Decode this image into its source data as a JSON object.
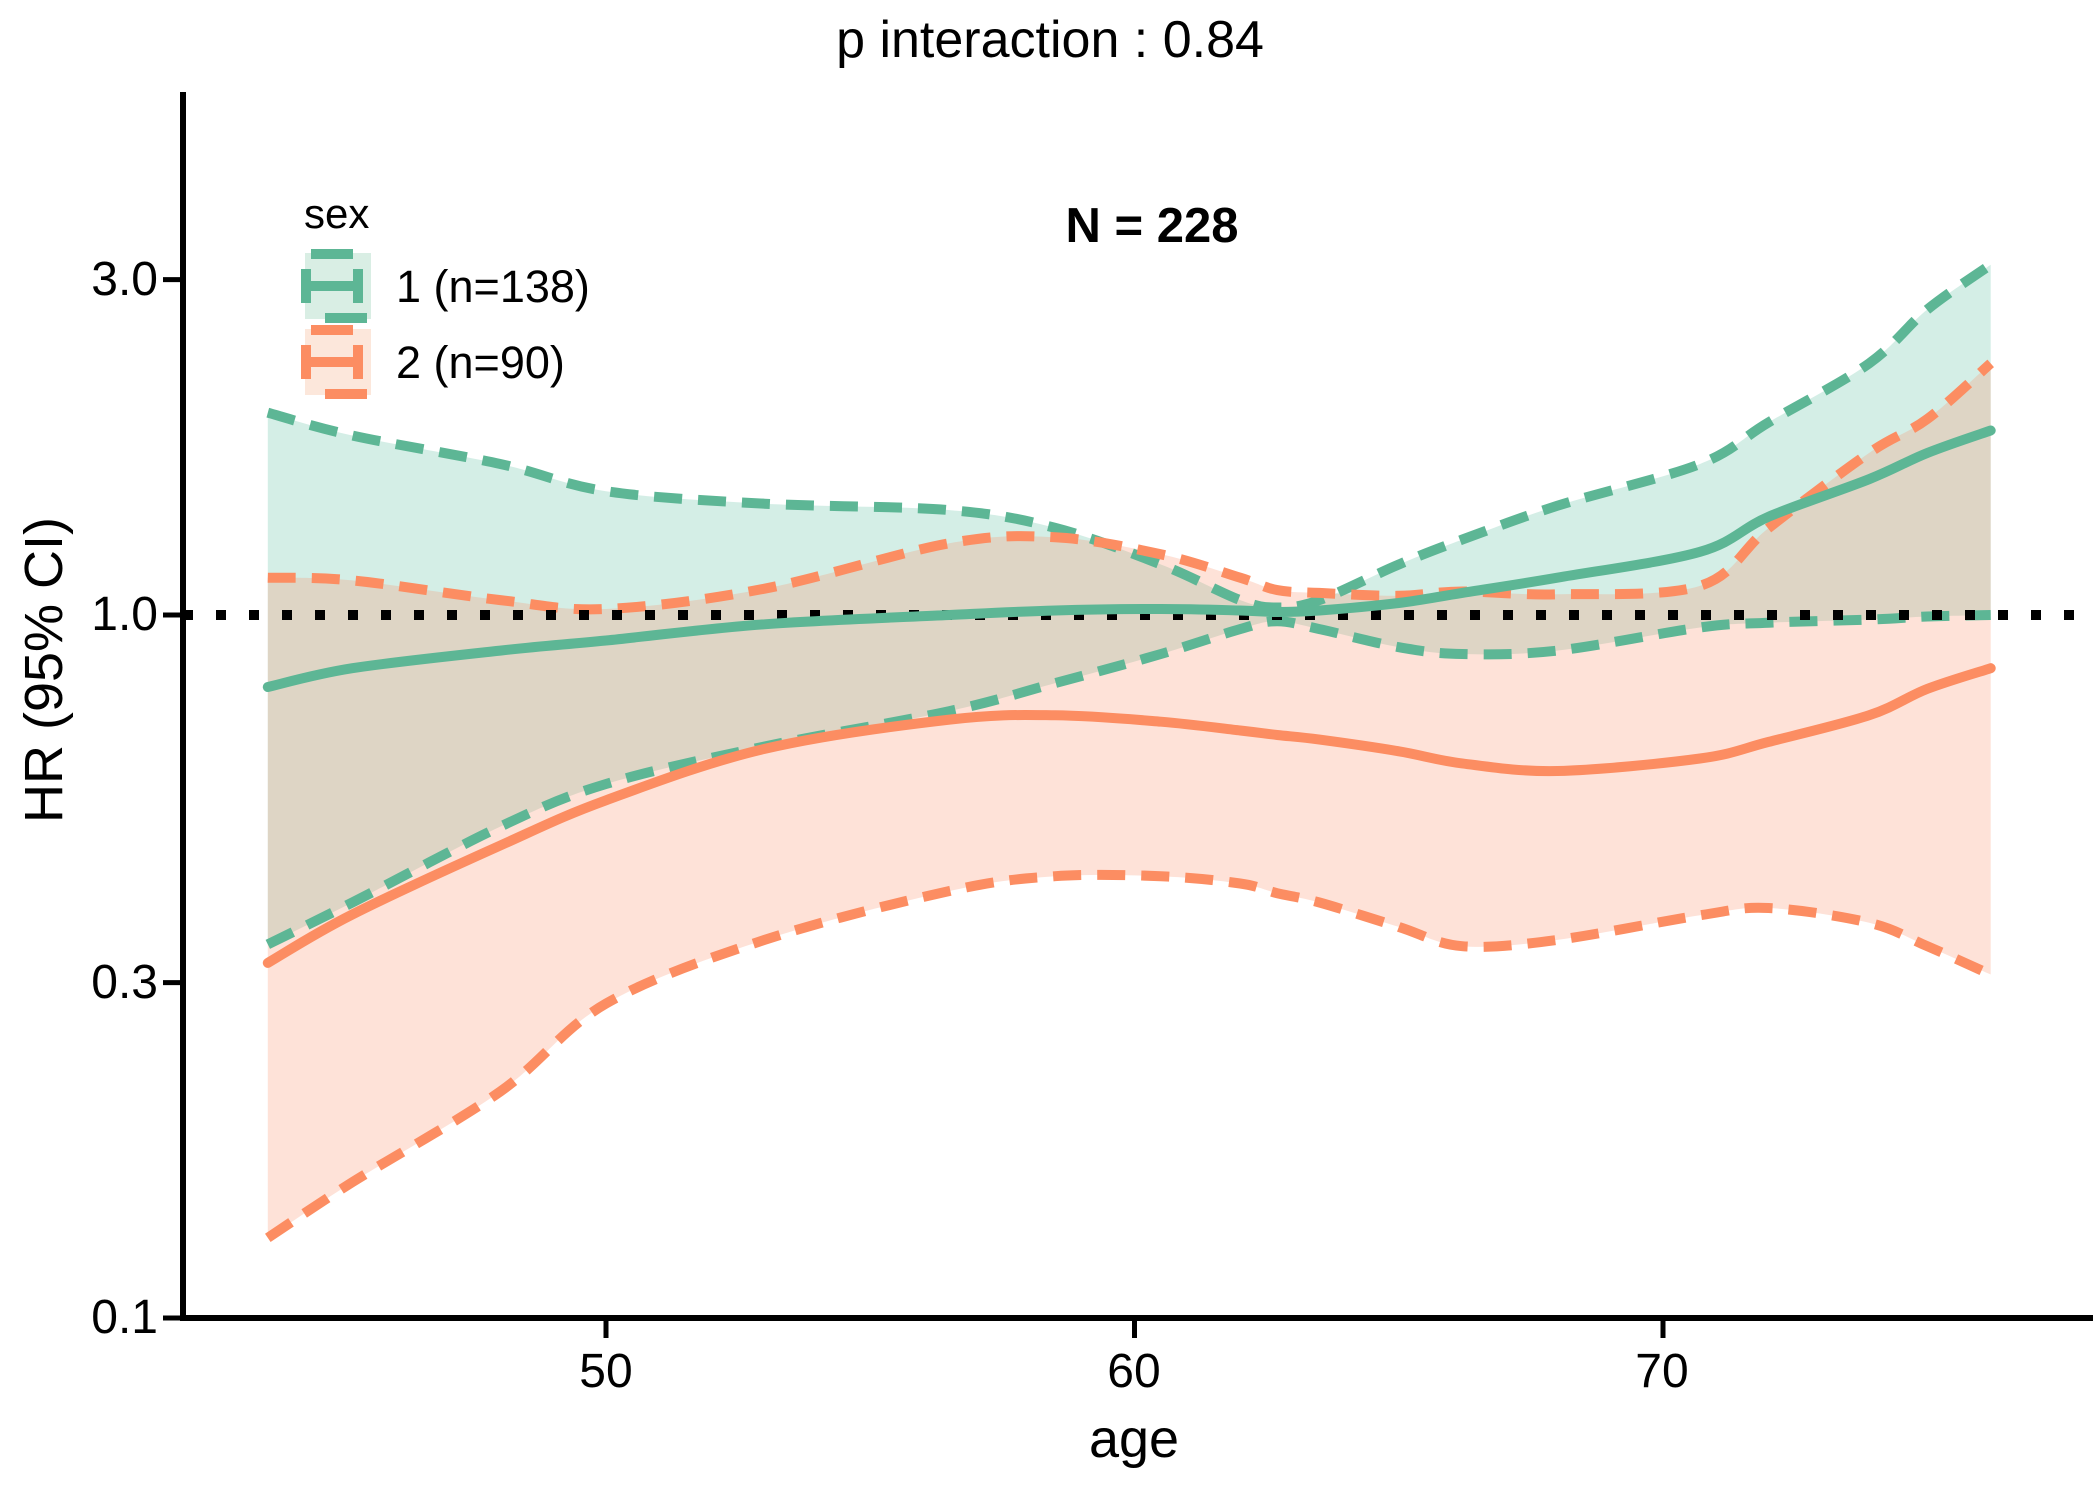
{
  "figure": {
    "title": "p interaction : 0.84",
    "sample_size_annotation": "N = 228"
  },
  "legend": {
    "title": "sex",
    "items": [
      {
        "label": "1 (n=138)",
        "color": "#5db695",
        "key_fill": "#d9eee4"
      },
      {
        "label": "2 (n=90)",
        "color": "#fc8d62",
        "key_fill": "#fce7db"
      }
    ]
  },
  "axes": {
    "x": {
      "label": "age",
      "tick_labels": [
        "50",
        "60",
        "70"
      ],
      "tick_values": [
        50,
        60,
        70
      ]
    },
    "y": {
      "label": "HR (95% CI)",
      "scale": "log",
      "tick_labels": [
        "3.0",
        "1.0",
        "0.3",
        "0.1"
      ],
      "tick_values": [
        3.0,
        1.0,
        0.3,
        0.1
      ]
    }
  },
  "chart_data": {
    "type": "line",
    "title": "p interaction : 0.84",
    "xlabel": "age",
    "ylabel": "HR (95% CI)",
    "y_scale": "log",
    "x_range": [
      43.6,
      76.2
    ],
    "y_range": [
      0.1,
      3.5
    ],
    "grid": false,
    "legend_position": "inside-top-left",
    "reference_line_y": 1.0,
    "ages": [
      43.6,
      45.2,
      48,
      50,
      53,
      56.5,
      58.5,
      60.5,
      62,
      62.7,
      63.5,
      65,
      66.2,
      68,
      70.7,
      72,
      73.9,
      75,
      76.2
    ],
    "series": [
      {
        "name": "1 (n=138)",
        "group": "sex 1",
        "n": 138,
        "color": "#5db695",
        "fill": "rgba(102,194,165,0.28)",
        "fit": [
          0.79,
          0.84,
          0.89,
          0.92,
          0.97,
          1.0,
          1.015,
          1.02,
          1.015,
          1.01,
          1.015,
          1.04,
          1.075,
          1.13,
          1.23,
          1.38,
          1.56,
          1.7,
          1.83
        ],
        "upper": [
          1.94,
          1.8,
          1.64,
          1.5,
          1.44,
          1.41,
          1.33,
          1.18,
          1.05,
          1.025,
          1.05,
          1.18,
          1.28,
          1.43,
          1.64,
          1.88,
          2.28,
          2.72,
          3.15
        ],
        "lower": [
          0.34,
          0.39,
          0.5,
          0.575,
          0.65,
          0.73,
          0.8,
          0.88,
          0.955,
          0.98,
          0.955,
          0.9,
          0.88,
          0.89,
          0.96,
          0.975,
          0.985,
          0.995,
          1.0
        ]
      },
      {
        "name": "2 (n=90)",
        "group": "sex 2",
        "n": 90,
        "color": "#fc8d62",
        "fill": "rgba(252,141,98,0.25)",
        "fit": [
          0.32,
          0.375,
          0.47,
          0.545,
          0.645,
          0.71,
          0.72,
          0.705,
          0.685,
          0.675,
          0.665,
          0.64,
          0.615,
          0.6,
          0.625,
          0.66,
          0.72,
          0.785,
          0.84
        ],
        "upper": [
          1.13,
          1.12,
          1.05,
          1.02,
          1.09,
          1.265,
          1.29,
          1.22,
          1.13,
          1.085,
          1.075,
          1.065,
          1.08,
          1.07,
          1.1,
          1.33,
          1.7,
          1.9,
          2.28
        ],
        "lower": [
          0.13,
          0.156,
          0.21,
          0.28,
          0.345,
          0.405,
          0.425,
          0.425,
          0.415,
          0.402,
          0.39,
          0.36,
          0.338,
          0.345,
          0.374,
          0.383,
          0.365,
          0.338,
          0.308
        ]
      }
    ]
  }
}
